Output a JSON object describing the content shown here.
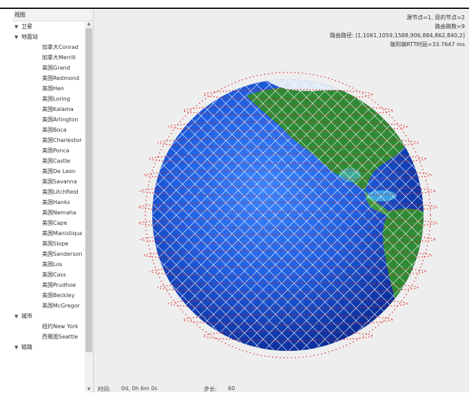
{
  "sidebar": {
    "header": "视图",
    "groups": [
      {
        "label": "卫星",
        "expanded": true
      },
      {
        "label": "地面站",
        "expanded": true
      }
    ],
    "ground_stations": [
      "加拿大Conrad",
      "加拿大Merrill",
      "美国Grand",
      "美国Redmond",
      "美国Hen",
      "美国Loring",
      "美国Kalama",
      "美国Arlington",
      "美国Boca",
      "美国Charleston",
      "美国Ponca",
      "美国Castle",
      "美国De Leon",
      "美国Savanna",
      "美国Litchfield",
      "美国Hanks",
      "美国Nemaha",
      "美国Cape",
      "美国Manistique",
      "美国Slope",
      "美国Sanderson",
      "美国Los",
      "美国Cass",
      "美国Prudhoe",
      "美国Beckley",
      "美国McGregor"
    ],
    "city_group": {
      "label": "城市",
      "expanded": true
    },
    "cities": [
      "纽约New York",
      "西雅图Seattle"
    ],
    "more_group": {
      "label": "链路",
      "expanded": true
    }
  },
  "info": {
    "line1": "源节点=1, 目的节点=2",
    "line2": "路由跳数=9",
    "line3": "路由路径: [1,1061,1059,1588,906,884,862,840,2]",
    "line4": "端到端RTT时延=33.7647 ms"
  },
  "status": {
    "time_label": "时间:",
    "time_value": "0d, 0h 6m 0s",
    "step_label": "步长:",
    "step_value": "60"
  },
  "colors": {
    "ocean": "#1f5fe0",
    "land": "#2f8a35",
    "orbit": "#e02020",
    "isl": "#ffffff"
  }
}
